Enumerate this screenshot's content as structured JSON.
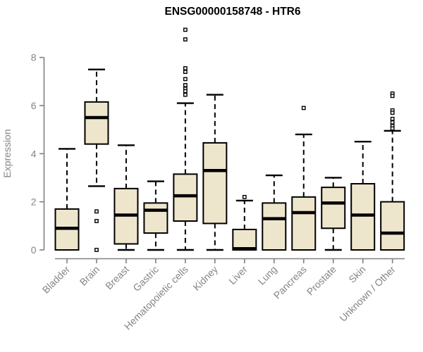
{
  "title": "ENSG00000158748 - HTR6",
  "chart_data": {
    "type": "boxplot",
    "title": "ENSG00000158748 - HTR6",
    "xlabel": "",
    "ylabel": "Expression",
    "ylim": [
      0,
      8
    ],
    "yticks": [
      0,
      2,
      4,
      6,
      8
    ],
    "grid": false,
    "legend": "none",
    "categories": [
      "Bladder",
      "Brain",
      "Breast",
      "Gastric",
      "Hematopoietic cells",
      "Kidney",
      "Liver",
      "Lung",
      "Pancreas",
      "Prostate",
      "Skin",
      "Unknown / Other"
    ],
    "boxes": [
      {
        "label": "Bladder",
        "low": 0,
        "q1": 0,
        "median": 0.9,
        "q3": 1.7,
        "high": 4.2,
        "outliers": []
      },
      {
        "label": "Brain",
        "low": 2.65,
        "q1": 4.4,
        "median": 5.5,
        "q3": 6.15,
        "high": 7.5,
        "outliers": [
          1.6,
          1.2,
          0
        ]
      },
      {
        "label": "Breast",
        "low": 0,
        "q1": 0.25,
        "median": 1.45,
        "q3": 2.55,
        "high": 4.35,
        "outliers": []
      },
      {
        "label": "Gastric",
        "low": 0,
        "q1": 0.7,
        "median": 1.65,
        "q3": 1.95,
        "high": 2.85,
        "outliers": []
      },
      {
        "label": "Hematopoietic cells",
        "low": 0,
        "q1": 1.2,
        "median": 2.25,
        "q3": 3.15,
        "high": 6.1,
        "outliers": [
          9.15,
          8.75,
          7.55,
          7.4,
          7.1,
          6.85,
          6.7,
          6.6,
          6.45
        ]
      },
      {
        "label": "Kidney",
        "low": 0,
        "q1": 1.1,
        "median": 3.3,
        "q3": 4.45,
        "high": 6.45,
        "outliers": []
      },
      {
        "label": "Liver",
        "low": 0,
        "q1": 0,
        "median": 0.05,
        "q3": 0.85,
        "high": 2.05,
        "outliers": [
          2.2
        ]
      },
      {
        "label": "Lung",
        "low": 0,
        "q1": 0,
        "median": 1.3,
        "q3": 1.95,
        "high": 3.1,
        "outliers": []
      },
      {
        "label": "Pancreas",
        "low": 0,
        "q1": 0,
        "median": 1.55,
        "q3": 2.2,
        "high": 4.8,
        "outliers": [
          5.9
        ]
      },
      {
        "label": "Prostate",
        "low": 0,
        "q1": 0.9,
        "median": 1.95,
        "q3": 2.6,
        "high": 3.0,
        "outliers": []
      },
      {
        "label": "Skin",
        "low": 0,
        "q1": 0,
        "median": 1.45,
        "q3": 2.75,
        "high": 4.5,
        "outliers": []
      },
      {
        "label": "Unknown / Other",
        "low": 0,
        "q1": 0,
        "median": 0.7,
        "q3": 2.0,
        "high": 4.95,
        "outliers": [
          6.5,
          6.4,
          5.8,
          5.7,
          5.45,
          5.3,
          5.15,
          5.05
        ]
      }
    ]
  },
  "colors": {
    "box_fill": "#EEE6CC",
    "box_border": "#000000",
    "median": "#000000",
    "whisker": "#000000",
    "outlier_stroke": "#000000",
    "outlier_fill": "#FFFFFF",
    "axis": "#808080",
    "text_gray": "#858585",
    "title": "#000000",
    "background": "#FFFFFF"
  }
}
